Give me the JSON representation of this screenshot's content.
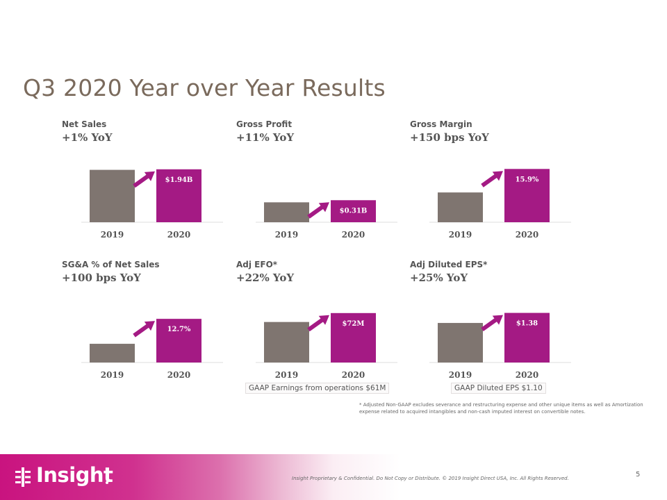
{
  "slide": {
    "title": "Q3 2020 Year over Year Results",
    "page_number": "5",
    "legal": "Insight Proprietary & Confidential. Do Not Copy or Distribute.  © 2019 Insight Direct USA, Inc.  All Rights Reserved.",
    "footnote": "* Adjusted Non-GAAP excludes severance and restructuring  expense and other unique items as well as Amortization  expense related to acquired intangibles and non-cash imputed interest on convertible notes.",
    "logo_text": "Insight"
  },
  "colors": {
    "bar_2019": "#7f7570",
    "bar_2020": "#a41a84",
    "arrow": "#a41a84",
    "title": "#7a6a5c",
    "footer_accent": "#c9137f"
  },
  "notes": {
    "efo": "GAAP Earnings from operations $61M",
    "eps": "GAAP Diluted EPS $1.10"
  },
  "chart_data": [
    {
      "type": "bar",
      "label": "Net Sales",
      "yoy": "+1% YoY",
      "categories": [
        "2019",
        "2020"
      ],
      "values": [
        1.92,
        1.94
      ],
      "data_labels": [
        "",
        "$1.94B"
      ],
      "ylim": [
        0,
        2.24
      ]
    },
    {
      "type": "bar",
      "label": "Gross Profit",
      "yoy": "+11% YoY",
      "categories": [
        "2019",
        "2020"
      ],
      "values": [
        0.28,
        0.31
      ],
      "data_labels": [
        "",
        "$0.31B"
      ],
      "ylim": [
        0,
        0.86
      ]
    },
    {
      "type": "bar",
      "label": "Gross Margin",
      "yoy": "+150 bps YoY",
      "categories": [
        "2019",
        "2020"
      ],
      "values": [
        14.4,
        15.9
      ],
      "data_labels": [
        "",
        "15.9%"
      ],
      "ylim": [
        12.5,
        16.4
      ]
    },
    {
      "type": "bar",
      "label": "SG&A  % of Net Sales",
      "yoy": "+100 bps YoY",
      "categories": [
        "2019",
        "2020"
      ],
      "values": [
        11.7,
        12.7
      ],
      "data_labels": [
        "",
        "12.7%"
      ],
      "ylim": [
        10.95,
        13.4
      ]
    },
    {
      "type": "bar",
      "label": "Adj EFO*",
      "yoy": "+22% YoY",
      "categories": [
        "2019",
        "2020"
      ],
      "values": [
        59,
        72
      ],
      "data_labels": [
        "",
        "$72M"
      ],
      "ylim": [
        0,
        89
      ]
    },
    {
      "type": "bar",
      "label": "Adj Diluted  EPS*",
      "yoy": "+25% YoY",
      "categories": [
        "2019",
        "2020"
      ],
      "values": [
        1.1,
        1.38
      ],
      "data_labels": [
        "",
        "$1.38"
      ],
      "ylim": [
        0,
        1.7
      ]
    }
  ]
}
